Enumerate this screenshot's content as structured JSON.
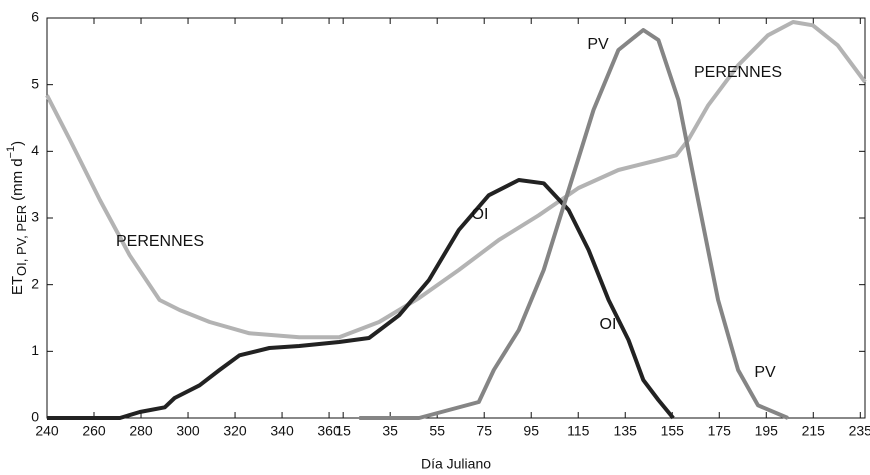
{
  "chart_data": {
    "type": "line",
    "ylabel": {
      "main": "ET",
      "sub": "OI, PV, PER",
      "unit": "(mm d",
      "sup": "−1",
      "close": ")"
    },
    "xlabel": "Día Juliano",
    "xlim": [
      240,
      588
    ],
    "ylim": [
      0,
      6
    ],
    "xticks": [
      240,
      260,
      280,
      300,
      320,
      340,
      360,
      {
        "value": 366,
        "label": "15"
      },
      {
        "value": 386,
        "label": "35"
      },
      {
        "value": 406,
        "label": "55"
      },
      {
        "value": 426,
        "label": "75"
      },
      {
        "value": 446,
        "label": "95"
      },
      {
        "value": 466,
        "label": "115"
      },
      {
        "value": 486,
        "label": "135"
      },
      {
        "value": 506,
        "label": "155"
      },
      {
        "value": 526,
        "label": "175"
      },
      {
        "value": 546,
        "label": "195"
      },
      {
        "value": 566,
        "label": "215"
      },
      {
        "value": 586,
        "label": "235"
      }
    ],
    "yticks": [
      0,
      1,
      2,
      3,
      4,
      5,
      6
    ],
    "series": [
      {
        "name": "PERENNES",
        "color": "#b3b3b3",
        "x": [
          240,
          249.8,
          262.5,
          275.2,
          287.9,
          296.4,
          309.2,
          326.1,
          347.3,
          364.3,
          381.3,
          398.3,
          415.2,
          432.2,
          449.2,
          466.1,
          483.1,
          500.1,
          507.7,
          512.8,
          521.3,
          534,
          546.7,
          557.4,
          565.8,
          576.4,
          588
        ],
        "values": [
          4.84,
          4.17,
          3.27,
          2.44,
          1.77,
          1.62,
          1.44,
          1.27,
          1.21,
          1.21,
          1.44,
          1.8,
          2.22,
          2.67,
          3.04,
          3.45,
          3.72,
          3.87,
          3.94,
          4.17,
          4.69,
          5.29,
          5.74,
          5.94,
          5.89,
          5.59,
          5.04
        ]
      },
      {
        "name": "OI",
        "color": "#222222",
        "x": [
          240,
          271,
          279.5,
          290.1,
          294.3,
          304.9,
          313.4,
          321.9,
          334.6,
          347.3,
          364.3,
          377,
          389.8,
          402.5,
          415.2,
          427.9,
          440.7,
          451.3,
          461.9,
          470.4,
          478.9,
          487.4,
          493.7,
          500.1,
          506.4
        ],
        "values": [
          0,
          0,
          0.09,
          0.16,
          0.3,
          0.49,
          0.72,
          0.94,
          1.05,
          1.08,
          1.14,
          1.2,
          1.54,
          2.07,
          2.82,
          3.34,
          3.57,
          3.52,
          3.12,
          2.52,
          1.77,
          1.17,
          0.57,
          0.27,
          0
        ]
      },
      {
        "name": "PV",
        "color": "#858585",
        "x": [
          372.8,
          398.3,
          411,
          423.7,
          430.1,
          440.7,
          451.3,
          461.9,
          472.5,
          483.1,
          493.7,
          500.1,
          508.6,
          517,
          525.5,
          534,
          542.5,
          555.2
        ],
        "values": [
          0,
          0,
          0.12,
          0.24,
          0.72,
          1.32,
          2.22,
          3.42,
          4.62,
          5.52,
          5.82,
          5.67,
          4.77,
          3.27,
          1.77,
          0.72,
          0.19,
          0
        ]
      }
    ]
  }
}
